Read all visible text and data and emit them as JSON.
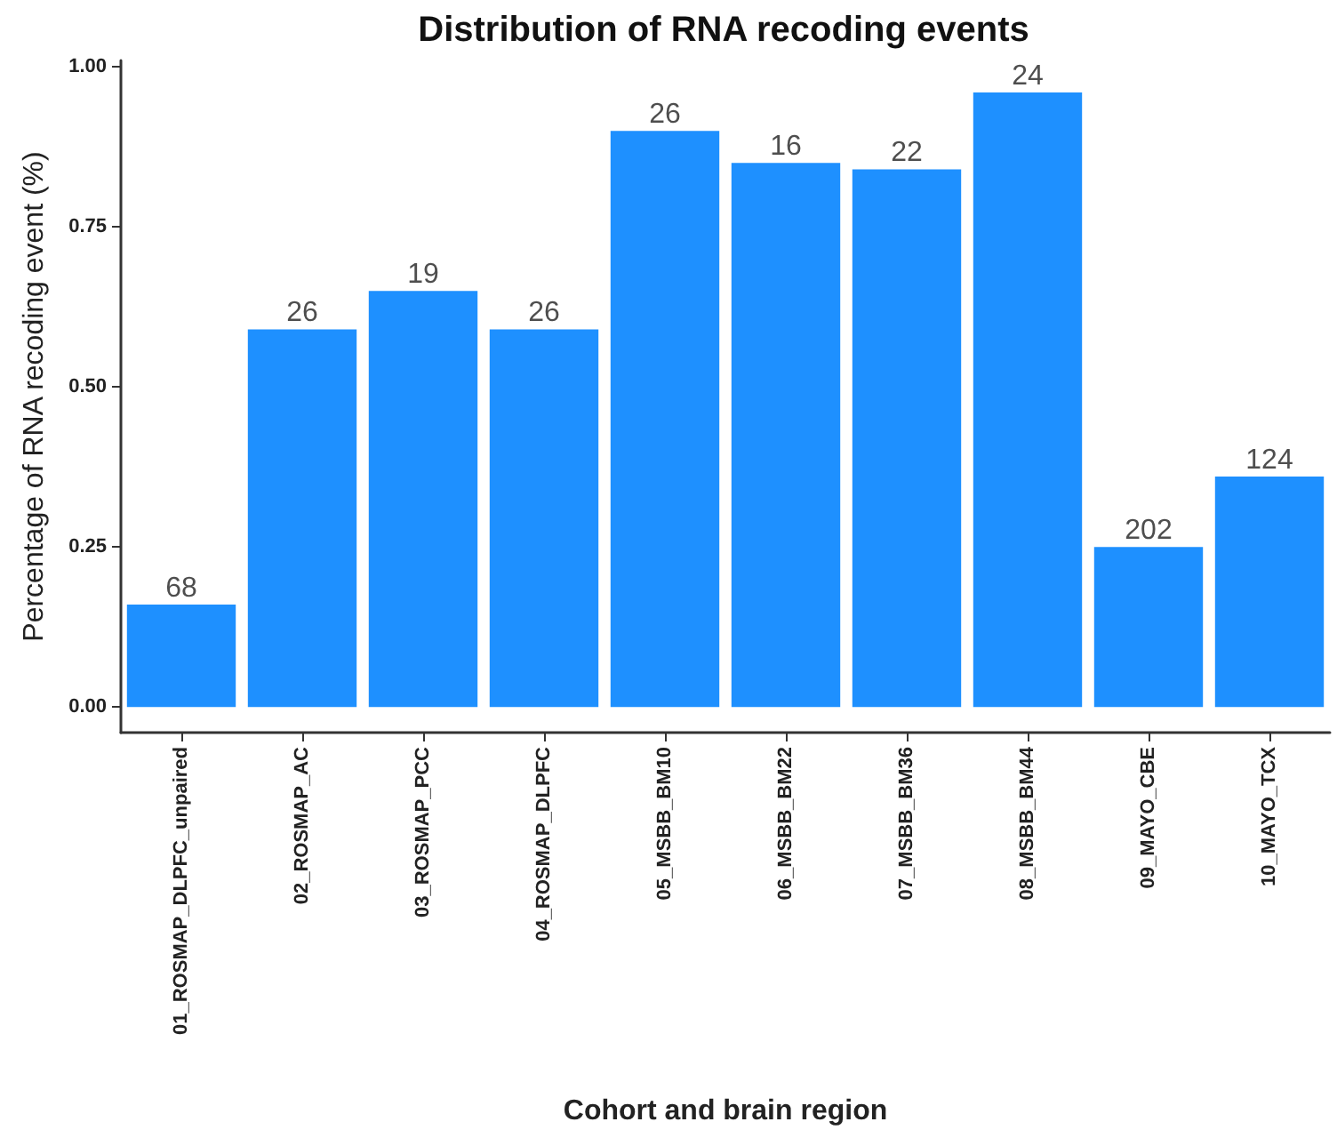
{
  "chart_data": {
    "type": "bar",
    "title": "Distribution of RNA recoding events",
    "xlabel": "Cohort and brain region",
    "ylabel": "Percentage of RNA recoding event (%)",
    "categories": [
      "01_ROSMAP_DLPFC_unpaired",
      "02_ROSMAP_AC",
      "03_ROSMAP_PCC",
      "04_ROSMAP_DLPFC",
      "05_MSBB_BM10",
      "06_MSBB_BM22",
      "07_MSBB_BM36",
      "08_MSBB_BM44",
      "09_MAYO_CBE",
      "10_MAYO_TCX"
    ],
    "values": [
      0.16,
      0.59,
      0.65,
      0.59,
      0.9,
      0.85,
      0.84,
      0.96,
      0.25,
      0.36
    ],
    "annotations": [
      {
        "text": "68",
        "x": "01_ROSMAP_DLPFC_unpaired",
        "y": 0.16
      },
      {
        "text": "26",
        "x": "02_ROSMAP_AC",
        "y": 0.59
      },
      {
        "text": "19",
        "x": "03_ROSMAP_PCC",
        "y": 0.65
      },
      {
        "text": "26",
        "x": "04_ROSMAP_DLPFC",
        "y": 0.59
      },
      {
        "text": "26",
        "x": "05_MSBB_BM10",
        "y": 0.9
      },
      {
        "text": "16",
        "x": "06_MSBB_BM22",
        "y": 0.85
      },
      {
        "text": "22",
        "x": "07_MSBB_BM36",
        "y": 0.84
      },
      {
        "text": "24",
        "x": "08_MSBB_BM44",
        "y": 0.96
      },
      {
        "text": "202",
        "x": "09_MAYO_CBE",
        "y": 0.25
      },
      {
        "text": "124",
        "x": "10_MAYO_TCX",
        "y": 0.36
      }
    ],
    "color": "#1e90ff",
    "ylim": [
      -0.04,
      1.01
    ],
    "yticks": [
      {
        "value": 0,
        "label": "0.00"
      },
      {
        "value": 0.25,
        "label": "0.25"
      },
      {
        "value": 0.5,
        "label": "0.50"
      },
      {
        "value": 0.75,
        "label": "0.75"
      },
      {
        "value": 1,
        "label": "1.00"
      }
    ],
    "grid": false
  }
}
